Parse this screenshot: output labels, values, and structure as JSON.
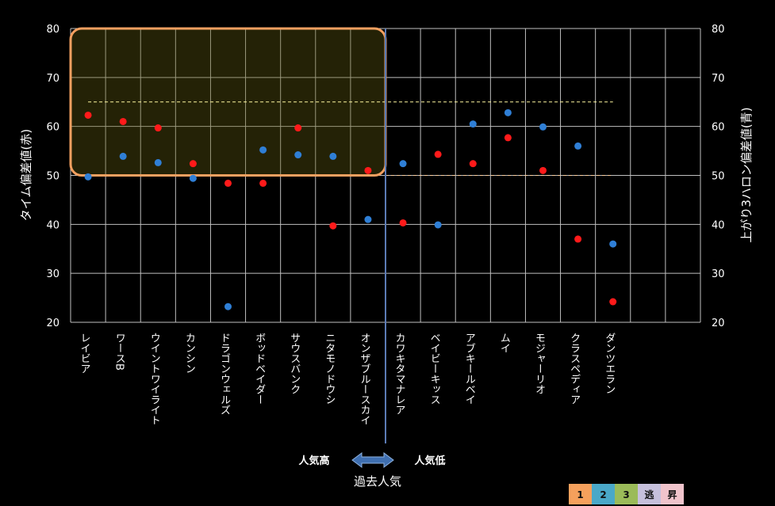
{
  "chart_data": {
    "type": "scatter",
    "categories": [
      "レイビア",
      "ワースB",
      "ウイントワイライト",
      "カンシン",
      "ドラゴンウェルズ",
      "ボッドベイダー",
      "サウスバンク",
      "ニタモノドウシ",
      "オンザブルースカイ",
      "カワキタマナレア",
      "ベイビーキッス",
      "アブキールベイ",
      "ムイ",
      "モジャーリオ",
      "クラスペディア",
      "ダンツエラン",
      "",
      ""
    ],
    "series": [
      {
        "color": "#ff1a1a",
        "axis": "left",
        "values": [
          62.3,
          61.0,
          59.7,
          52.4,
          48.4,
          48.4,
          59.7,
          39.7,
          51.0,
          40.3,
          54.3,
          52.4,
          57.7,
          51.0,
          37.0,
          24.2,
          null,
          null
        ]
      },
      {
        "color": "#2f7fd6",
        "axis": "right",
        "values": [
          49.7,
          53.9,
          52.6,
          49.4,
          23.2,
          55.2,
          54.2,
          53.9,
          41.0,
          52.4,
          39.9,
          60.5,
          62.8,
          59.9,
          56.0,
          36.0,
          null,
          null
        ]
      }
    ],
    "ylabel_left": "タイム偏差値(赤)",
    "ylabel_right": "上がり3ハロン偏差値(青)",
    "xlabel": "過去人気",
    "ylim": [
      20,
      80
    ],
    "yticks": [
      "20",
      "30",
      "40",
      "50",
      "60",
      "70",
      "80"
    ],
    "reference_lines": [
      65,
      50
    ],
    "highlight_box": {
      "x_from": 0,
      "x_to": 9,
      "y_from": 50,
      "y_to": 80
    },
    "popularity_divider_after": 9,
    "grid": true
  },
  "arrow": {
    "left_label": "人気高",
    "right_label": "人気低"
  },
  "legend_badges": [
    {
      "text": "1",
      "color": "#f5a05c"
    },
    {
      "text": "2",
      "color": "#4aa8c8"
    },
    {
      "text": "3",
      "color": "#9bbb59"
    },
    {
      "text": "逃",
      "color": "#c6c0dc"
    },
    {
      "text": "昇",
      "color": "#f0c4cc"
    }
  ]
}
